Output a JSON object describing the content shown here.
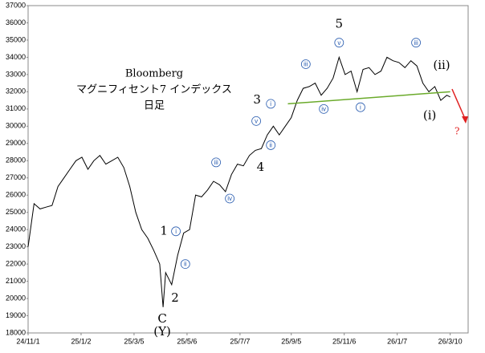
{
  "chart_data": {
    "type": "line",
    "title": [
      "Bloomberg",
      "マグニフィセント7 インデックス",
      "日足"
    ],
    "x": [
      "2024-11-01",
      "2024-11-08",
      "2024-11-15",
      "2024-11-22",
      "2024-11-29",
      "2024-12-06",
      "2024-12-13",
      "2024-12-20",
      "2024-12-27",
      "2025-01-03",
      "2025-01-10",
      "2025-01-17",
      "2025-01-24",
      "2025-01-31",
      "2025-02-07",
      "2025-02-14",
      "2025-02-21",
      "2025-02-28",
      "2025-03-07",
      "2025-03-14",
      "2025-03-21",
      "2025-03-28",
      "2025-04-04",
      "2025-04-08",
      "2025-04-11",
      "2025-04-18",
      "2025-04-25",
      "2025-05-02",
      "2025-05-09",
      "2025-05-16",
      "2025-05-23",
      "2025-05-30",
      "2025-06-06",
      "2025-06-13",
      "2025-06-20",
      "2025-06-27",
      "2025-07-04",
      "2025-07-11",
      "2025-07-18",
      "2025-07-25",
      "2025-08-01",
      "2025-08-08",
      "2025-08-15",
      "2025-08-22",
      "2025-08-29",
      "2025-09-05",
      "2025-09-12",
      "2025-09-19",
      "2025-09-26",
      "2025-10-03",
      "2025-10-10",
      "2025-10-17",
      "2025-10-24",
      "2025-10-31",
      "2025-11-07",
      "2025-11-14",
      "2025-11-21",
      "2025-11-28",
      "2025-12-05",
      "2025-12-12",
      "2025-12-19",
      "2025-12-26",
      "2026-01-02",
      "2026-01-09",
      "2026-01-16",
      "2026-01-23",
      "2026-01-30",
      "2026-02-06",
      "2026-02-13",
      "2026-02-20",
      "2026-02-27",
      "2026-03-06",
      "2026-03-10"
    ],
    "series": [
      {
        "name": "Bloomberg Magnificent 7",
        "color": "#000000",
        "values": [
          23000,
          25500,
          25200,
          25300,
          25400,
          26500,
          27000,
          27500,
          28000,
          28200,
          27500,
          28000,
          28300,
          27800,
          28000,
          28200,
          27600,
          26500,
          25000,
          24000,
          23500,
          22800,
          22000,
          19500,
          21500,
          20800,
          22500,
          23800,
          24000,
          26000,
          25900,
          26300,
          26800,
          26600,
          26200,
          27200,
          27800,
          27700,
          28300,
          28600,
          28700,
          29500,
          30000,
          29500,
          30000,
          30500,
          31500,
          32200,
          32300,
          32500,
          31800,
          32200,
          32800,
          34000,
          33000,
          33200,
          32000,
          33300,
          33400,
          33000,
          33200,
          34000,
          33800,
          33700,
          33400,
          33800,
          33500,
          32500,
          32000,
          32300,
          31500,
          31800,
          31700
        ]
      }
    ],
    "trendline": {
      "color": "#6aaa2a",
      "x": [
        "2025-09-01",
        "2026-03-10"
      ],
      "values": [
        31300,
        32000
      ]
    },
    "xlim": [
      "2024-11-01",
      "2026-03-31"
    ],
    "xticks": [
      {
        "value": "2024-11-01",
        "label": "24/11/1"
      },
      {
        "value": "2025-01-02",
        "label": "25/1/2"
      },
      {
        "value": "2025-03-05",
        "label": "25/3/5"
      },
      {
        "value": "2025-05-06",
        "label": "25/5/6"
      },
      {
        "value": "2025-07-07",
        "label": "25/7/7"
      },
      {
        "value": "2025-09-05",
        "label": "25/9/5"
      },
      {
        "value": "2025-11-06",
        "label": "25/11/6"
      },
      {
        "value": "2026-01-07",
        "label": "26/1/7"
      },
      {
        "value": "2026-03-10",
        "label": "26/3/10"
      }
    ],
    "ylim": [
      18000,
      37000
    ],
    "yticks": [
      18000,
      19000,
      20000,
      21000,
      22000,
      23000,
      24000,
      25000,
      26000,
      27000,
      28000,
      29000,
      30000,
      31000,
      32000,
      33000,
      34000,
      35000,
      36000,
      37000
    ],
    "grid": false,
    "annotations": [
      {
        "text": "1",
        "x": "2025-04-09",
        "y": 23900
      },
      {
        "text": "i",
        "x": "2025-04-23",
        "y": 23900,
        "circled": true
      },
      {
        "text": "ii",
        "x": "2025-05-04",
        "y": 22000,
        "circled": true
      },
      {
        "text": "2",
        "x": "2025-04-22",
        "y": 20000
      },
      {
        "text": "C",
        "x": "2025-04-07",
        "y": 18800
      },
      {
        "text": "(Y)",
        "x": "2025-04-07",
        "y": 18050
      },
      {
        "text": "iii",
        "x": "2025-06-09",
        "y": 27900,
        "circled": true
      },
      {
        "text": "iv",
        "x": "2025-06-25",
        "y": 25800,
        "circled": true
      },
      {
        "text": "3",
        "x": "2025-07-27",
        "y": 31500
      },
      {
        "text": "i",
        "x": "2025-08-12",
        "y": 31300,
        "circled": true
      },
      {
        "text": "v",
        "x": "2025-07-26",
        "y": 30300,
        "circled": true
      },
      {
        "text": "ii",
        "x": "2025-08-12",
        "y": 28900,
        "circled": true
      },
      {
        "text": "4",
        "x": "2025-07-31",
        "y": 27600
      },
      {
        "text": "5",
        "x": "2025-10-31",
        "y": 35900
      },
      {
        "text": "v",
        "x": "2025-10-31",
        "y": 34850,
        "circled": true
      },
      {
        "text": "iii",
        "x": "2025-09-22",
        "y": 33600,
        "circled": true
      },
      {
        "text": "iv",
        "x": "2025-10-13",
        "y": 31000,
        "circled": true
      },
      {
        "text": "i",
        "x": "2025-11-25",
        "y": 31100,
        "circled": true
      },
      {
        "text": "iii",
        "x": "2026-01-29",
        "y": 34850,
        "circled": true
      },
      {
        "text": "(ii)",
        "x": "2026-02-28",
        "y": 33500
      },
      {
        "text": "(i)",
        "x": "2026-02-14",
        "y": 30600
      },
      {
        "text": "?",
        "x": "2026-03-18",
        "y": 29700,
        "color": "#e02020"
      }
    ]
  }
}
